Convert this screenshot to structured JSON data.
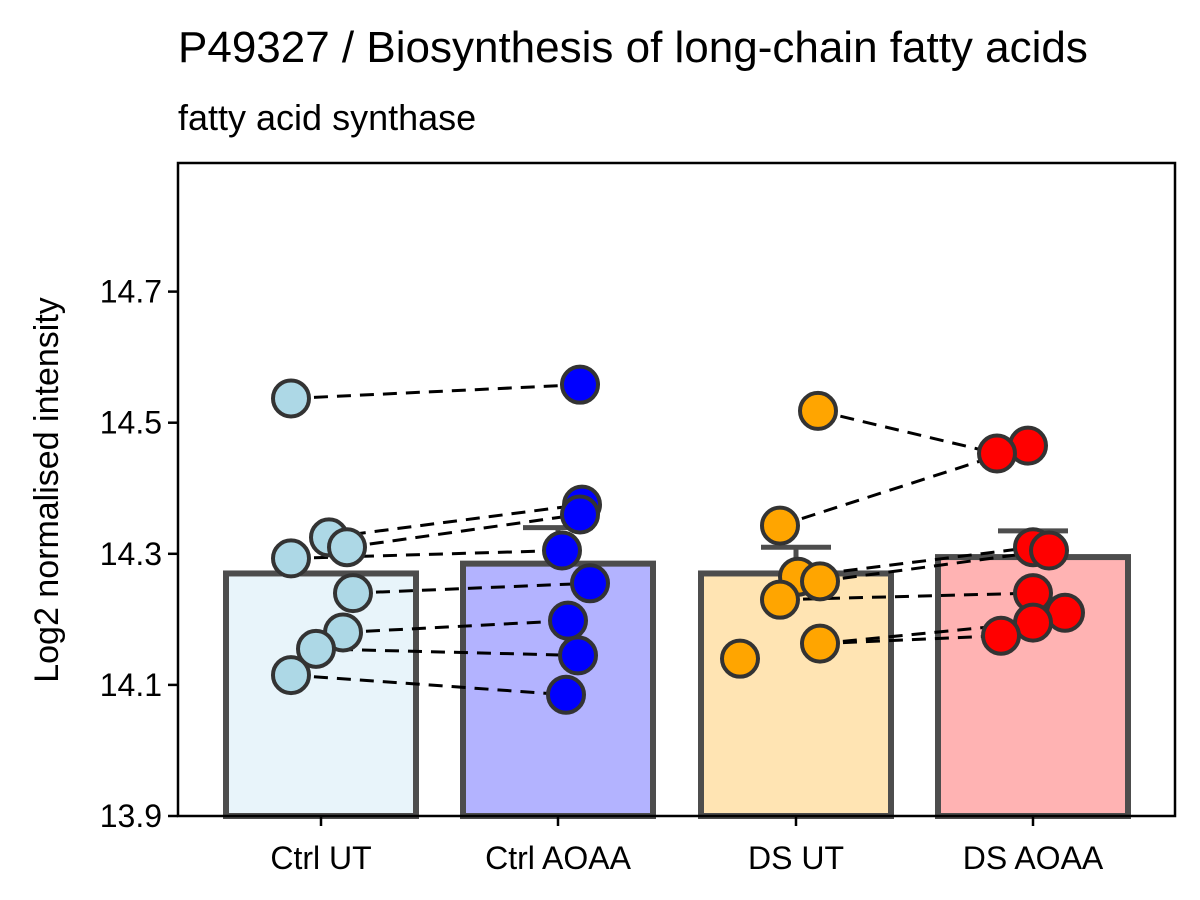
{
  "chart_data": {
    "type": "bar",
    "title": "P49327 / Biosynthesis of long-chain fatty acids",
    "subtitle": "fatty acid synthase",
    "xlabel": "",
    "ylabel": "Log2 normalised intensity",
    "ylim": [
      13.9,
      14.9
    ],
    "yticks": [
      13.9,
      14.1,
      14.3,
      14.5,
      14.7
    ],
    "ytick_labels": [
      "13.9",
      "14.1",
      "14.3",
      "14.5",
      "14.7"
    ],
    "grid": false,
    "categories": [
      "Ctrl UT",
      "Ctrl AOAA",
      "DS UT",
      "DS AOAA"
    ],
    "bar_values": [
      14.27,
      14.285,
      14.27,
      14.295
    ],
    "error_upper": [
      14.27,
      14.34,
      14.31,
      14.335
    ],
    "bar_fill_colors": [
      "#E8F4FA",
      "#B3B3FF",
      "#FFE4B3",
      "#FFB3B3"
    ],
    "point_colors": [
      "#ADD8E6",
      "#0000FF",
      "#FFA500",
      "#FF0000"
    ],
    "points": [
      [
        14.537,
        14.325,
        14.31,
        14.293,
        14.24,
        14.18,
        14.155,
        14.115
      ],
      [
        14.558,
        14.375,
        14.36,
        14.305,
        14.255,
        14.198,
        14.145,
        14.085
      ],
      [
        14.518,
        14.343,
        14.265,
        14.258,
        14.23,
        14.163,
        14.14
      ],
      [
        14.465,
        14.453,
        14.31,
        14.305,
        14.24,
        14.21,
        14.195,
        14.175
      ]
    ],
    "pairs": [
      {
        "from": [
          0,
          0
        ],
        "to": [
          1,
          0
        ]
      },
      {
        "from": [
          0,
          1
        ],
        "to": [
          1,
          1
        ]
      },
      {
        "from": [
          0,
          2
        ],
        "to": [
          1,
          2
        ]
      },
      {
        "from": [
          0,
          3
        ],
        "to": [
          1,
          3
        ]
      },
      {
        "from": [
          0,
          4
        ],
        "to": [
          1,
          4
        ]
      },
      {
        "from": [
          0,
          5
        ],
        "to": [
          1,
          5
        ]
      },
      {
        "from": [
          0,
          6
        ],
        "to": [
          1,
          6
        ]
      },
      {
        "from": [
          0,
          7
        ],
        "to": [
          1,
          7
        ]
      },
      {
        "from": [
          2,
          0
        ],
        "to": [
          3,
          1
        ]
      },
      {
        "from": [
          2,
          1
        ],
        "to": [
          3,
          0
        ]
      },
      {
        "from": [
          2,
          2
        ],
        "to": [
          3,
          2
        ]
      },
      {
        "from": [
          2,
          3
        ],
        "to": [
          3,
          3
        ]
      },
      {
        "from": [
          2,
          4
        ],
        "to": [
          3,
          4
        ]
      },
      {
        "from": [
          2,
          5
        ],
        "to": [
          3,
          6
        ]
      },
      {
        "from": [
          2,
          5
        ],
        "to": [
          3,
          7
        ]
      }
    ]
  }
}
